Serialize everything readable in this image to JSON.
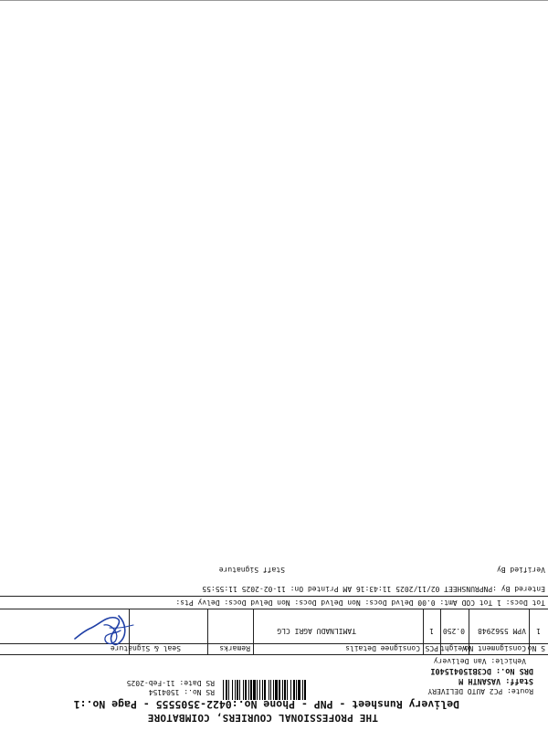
{
  "header": {
    "company": "THE PROFESSIONAL COURIERS, COIMBATORE",
    "subtitle": "Delivery Runsheet - PNP - Phone No.:0422-3505555 - Page No.:1",
    "route": "Route: PC2 AUTO DELIVERY",
    "staff": "Staff: VASANTH M",
    "drs_no": "DRS No.: DC3B15041540I",
    "vehicle": "Vehicle: Van Delivery",
    "rs_no": "RS No.: 1504154",
    "rs_date": "RS Date: 11-Feb-2025"
  },
  "table": {
    "headers": [
      "S No",
      "Consignment No",
      "Weight",
      "PCS",
      "Consignee Details",
      "Remarks",
      "Seal & Signature"
    ],
    "rows": [
      [
        "1",
        "VPM 5562948",
        "0.250",
        "1",
        "TAMILNADU AGRI CLG",
        "",
        ""
      ]
    ]
  },
  "totals": {
    "text": "Tot Docs: 1   Tot COD Amt: 0.00   Delvd Docs:   Non Delvd Docs:   Non Delvd Docs:   Delvy Pts:"
  },
  "footer": {
    "entered_by": "Entered By :PNPRUNSHEET 02/11/2025 11:43:16 AM   Printed On: 11-02-2025 11:55:55",
    "verified_by": "Verified By",
    "staff_signature": "Staff Signature"
  }
}
